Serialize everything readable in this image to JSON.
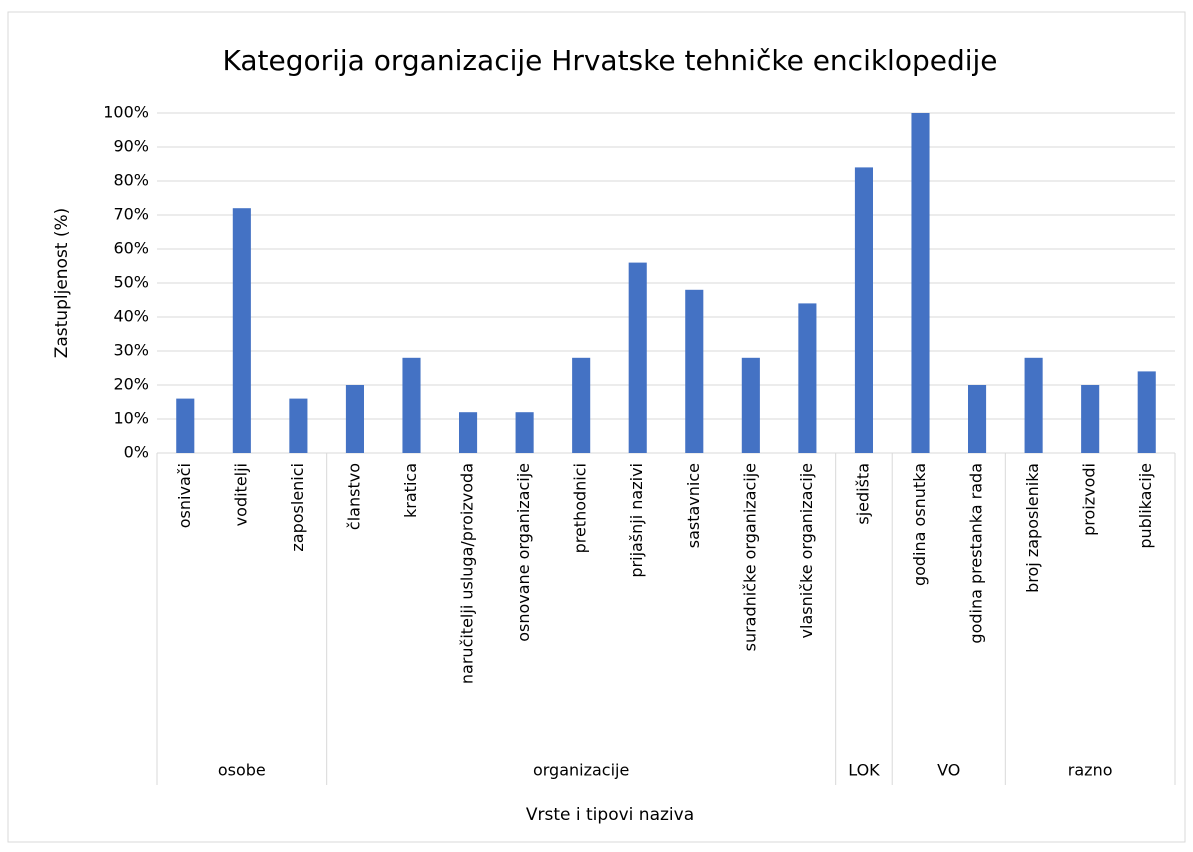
{
  "chart_data": {
    "type": "bar",
    "title": "Kategorija organizacije Hrvatske tehničke enciklopedije",
    "xlabel": "Vrste i tipovi naziva",
    "ylabel": "Zastupljenost (%)",
    "categories": [
      "osnivači",
      "voditelji",
      "zaposlenici",
      "članstvo",
      "kratica",
      "naručitelji usluga/proizvoda",
      "osnovane organizacije",
      "prethodnici",
      "prijašnji nazivi",
      "sastavnice",
      "suradničke organizacije",
      "vlasničke organizacije",
      "sjedišta",
      "godina osnutka",
      "godina prestanka rada",
      "broj zaposlenika",
      "proizvodi",
      "publikacije"
    ],
    "groups": [
      {
        "label": "osobe",
        "count": 3
      },
      {
        "label": "organizacije",
        "count": 9
      },
      {
        "label": "LOK",
        "count": 1
      },
      {
        "label": "VO",
        "count": 2
      },
      {
        "label": "razno",
        "count": 3
      }
    ],
    "values": [
      16,
      72,
      16,
      20,
      28,
      12,
      12,
      28,
      56,
      48,
      28,
      44,
      84,
      100,
      20,
      28,
      20,
      24
    ],
    "color": "#4472c4",
    "ylim": [
      0,
      100
    ],
    "yticks": [
      {
        "value": 0,
        "label": "0%"
      },
      {
        "value": 10,
        "label": "10%"
      },
      {
        "value": 20,
        "label": "20%"
      },
      {
        "value": 30,
        "label": "30%"
      },
      {
        "value": 40,
        "label": "40%"
      },
      {
        "value": 50,
        "label": "50%"
      },
      {
        "value": 60,
        "label": "60%"
      },
      {
        "value": 70,
        "label": "70%"
      },
      {
        "value": 80,
        "label": "80%"
      },
      {
        "value": 90,
        "label": "90%"
      },
      {
        "value": 100,
        "label": "100%"
      }
    ],
    "grid": true
  }
}
